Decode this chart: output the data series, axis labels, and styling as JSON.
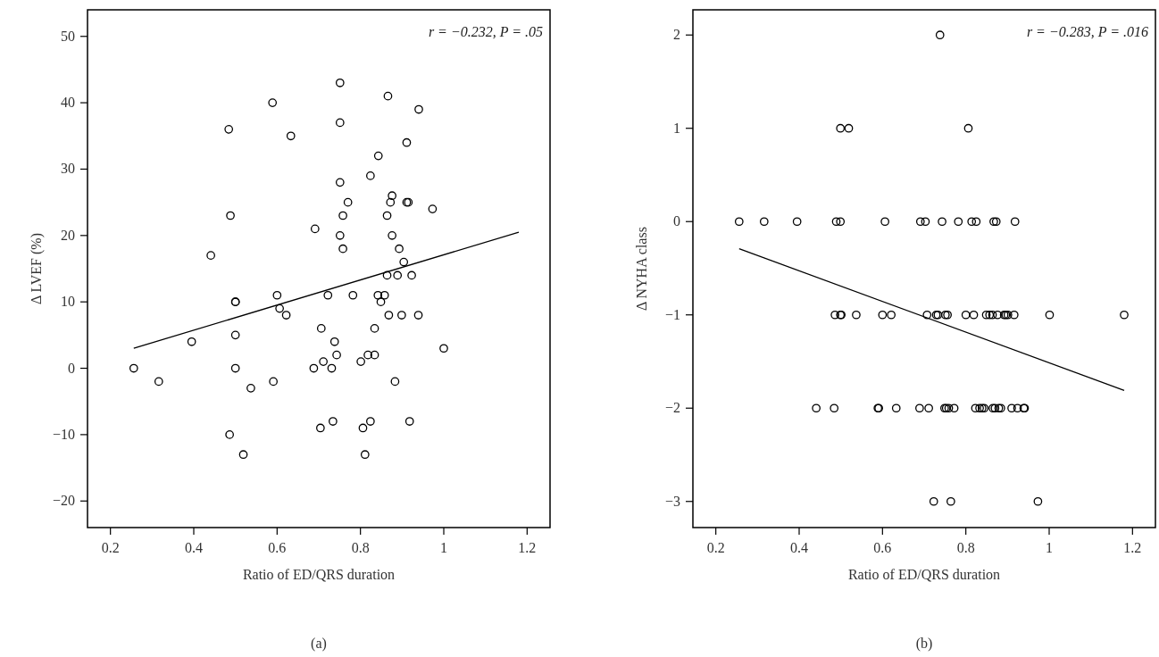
{
  "chart_data": [
    {
      "type": "scatter",
      "xlabel": "Ratio of ED/QRS duration",
      "ylabel": "Δ LVEF (%)",
      "xlim": [
        0.145,
        1.255
      ],
      "ylim": [
        -24,
        54
      ],
      "xticks": [
        0.2,
        0.4,
        0.6,
        0.8,
        1,
        1.2
      ],
      "yticks": [
        -20,
        -10,
        0,
        10,
        20,
        30,
        40,
        50
      ],
      "grid": false,
      "annotations": [
        "r = −0.232, P = .05",
        "(a)"
      ],
      "series": [
        {
          "color": "#000000",
          "marker": "circle",
          "x": [
            0.751,
            0.866,
            0.94,
            0.589,
            0.484,
            0.633,
            0.751,
            0.911,
            0.843,
            0.824,
            0.751,
            0.77,
            0.876,
            0.872,
            0.911,
            0.915,
            0.973,
            0.488,
            0.758,
            0.864,
            0.691,
            0.751,
            0.876,
            0.758,
            0.893,
            0.904,
            0.441,
            0.864,
            0.889,
            0.923,
            0.5,
            0.5,
            0.6,
            0.606,
            0.622,
            0.722,
            0.782,
            0.842,
            0.858,
            0.849,
            0.868,
            0.899,
            0.939,
            0.395,
            0.5,
            0.706,
            0.834,
            0.738,
            0.743,
            0.818,
            0.834,
            0.801,
            0.711,
            1.0,
            0.256,
            0.5,
            0.688,
            0.731,
            0.316,
            0.591,
            0.883,
            0.537,
            0.734,
            0.824,
            0.918,
            0.704,
            0.806,
            0.486,
            0.519,
            0.811
          ],
          "values": [
            43,
            41,
            39,
            40,
            36,
            35,
            37,
            34,
            32,
            29,
            28,
            25,
            26,
            25,
            25,
            25,
            24,
            23,
            23,
            23,
            21,
            20,
            20,
            18,
            18,
            16,
            17,
            14,
            14,
            14,
            10,
            10,
            11,
            9,
            8,
            11,
            11,
            11,
            11,
            10,
            8,
            8,
            8,
            4,
            5,
            6,
            6,
            4,
            2,
            2,
            2,
            1,
            1,
            3,
            0,
            0,
            0,
            0,
            -2,
            -2,
            -2,
            -3,
            -8,
            -8,
            -8,
            -9,
            -9,
            -10,
            -13,
            -13
          ]
        },
        {
          "type": "line",
          "color": "#000000",
          "x": [
            0.256,
            1.18
          ],
          "values": [
            3,
            20.5
          ],
          "line_style": "solid"
        }
      ]
    },
    {
      "type": "scatter",
      "xlabel": "Ratio of ED/QRS duration",
      "ylabel": "Δ NYHA class",
      "xlim": [
        0.145,
        1.255
      ],
      "ylim": [
        -3.28,
        2.27
      ],
      "xticks": [
        0.2,
        0.4,
        0.6,
        0.8,
        1,
        1.2
      ],
      "yticks": [
        -3,
        -2,
        -1,
        0,
        1,
        2
      ],
      "grid": false,
      "annotations": [
        "r = −0.283, P = .016",
        "(b)"
      ],
      "series": [
        {
          "color": "#000000",
          "marker": "circle",
          "x": [
            0.738,
            0.499,
            0.519,
            0.806,
            0.256,
            0.316,
            0.395,
            0.489,
            0.499,
            0.606,
            0.691,
            0.703,
            0.743,
            0.782,
            0.814,
            0.825,
            0.867,
            0.873,
            0.918,
            0.486,
            0.499,
            0.501,
            0.537,
            0.6,
            0.621,
            0.707,
            0.729,
            0.733,
            0.751,
            0.756,
            0.8,
            0.819,
            0.849,
            0.857,
            0.864,
            0.876,
            0.892,
            0.896,
            0.901,
            0.916,
            1.001,
            1.18,
            0.441,
            0.484,
            0.589,
            0.591,
            0.633,
            0.689,
            0.711,
            0.749,
            0.753,
            0.759,
            0.772,
            0.823,
            0.833,
            0.839,
            0.844,
            0.865,
            0.87,
            0.879,
            0.884,
            0.91,
            0.924,
            0.939,
            0.941,
            0.723,
            0.764,
            0.973
          ],
          "values": [
            2,
            1,
            1,
            1,
            0,
            0,
            0,
            0,
            0,
            0,
            0,
            0,
            0,
            0,
            0,
            0,
            0,
            0,
            0,
            -1,
            -1,
            -1,
            -1,
            -1,
            -1,
            -1,
            -1,
            -1,
            -1,
            -1,
            -1,
            -1,
            -1,
            -1,
            -1,
            -1,
            -1,
            -1,
            -1,
            -1,
            -1,
            -1,
            -2,
            -2,
            -2,
            -2,
            -2,
            -2,
            -2,
            -2,
            -2,
            -2,
            -2,
            -2,
            -2,
            -2,
            -2,
            -2,
            -2,
            -2,
            -2,
            -2,
            -2,
            -2,
            -2,
            -3,
            -3,
            -3
          ]
        },
        {
          "type": "line",
          "color": "#000000",
          "x": [
            0.256,
            1.18
          ],
          "values": [
            -0.29,
            -1.81
          ],
          "line_style": "solid"
        }
      ]
    }
  ]
}
